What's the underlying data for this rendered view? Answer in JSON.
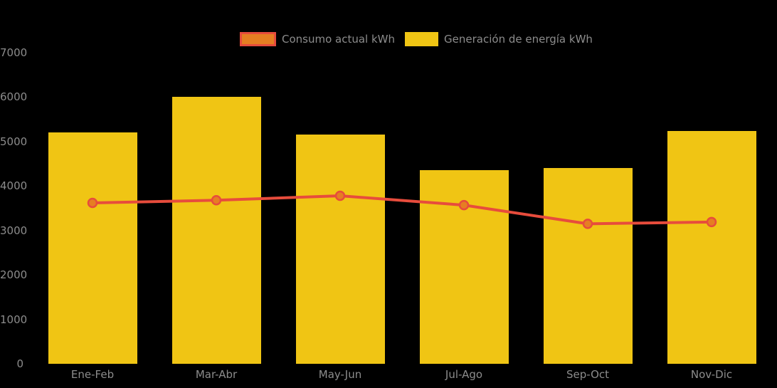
{
  "chart_data": {
    "type": "combo",
    "categories": [
      "Ene-Feb",
      "Mar-Abr",
      "May-Jun",
      "Jul-Ago",
      "Sep-Oct",
      "Nov-Dic"
    ],
    "series": [
      {
        "name": "Consumo actual kWh",
        "type": "line",
        "color": "#E74C3C",
        "marker_fill": "#E67E22",
        "values": [
          3620,
          3680,
          3780,
          3570,
          3150,
          3190
        ]
      },
      {
        "name": "Generación de energía kWh",
        "type": "bar",
        "color": "#F0C514",
        "values": [
          5200,
          6000,
          5150,
          4360,
          4400,
          5240
        ]
      }
    ],
    "title": "",
    "xlabel": "",
    "ylabel": "",
    "ylim": [
      0,
      7000
    ],
    "yticks": [
      0,
      1000,
      2000,
      3000,
      4000,
      5000,
      6000,
      7000
    ],
    "grid": false,
    "legend_position": "top",
    "background_color": "#000000",
    "text_color": "#8C8C8C"
  }
}
